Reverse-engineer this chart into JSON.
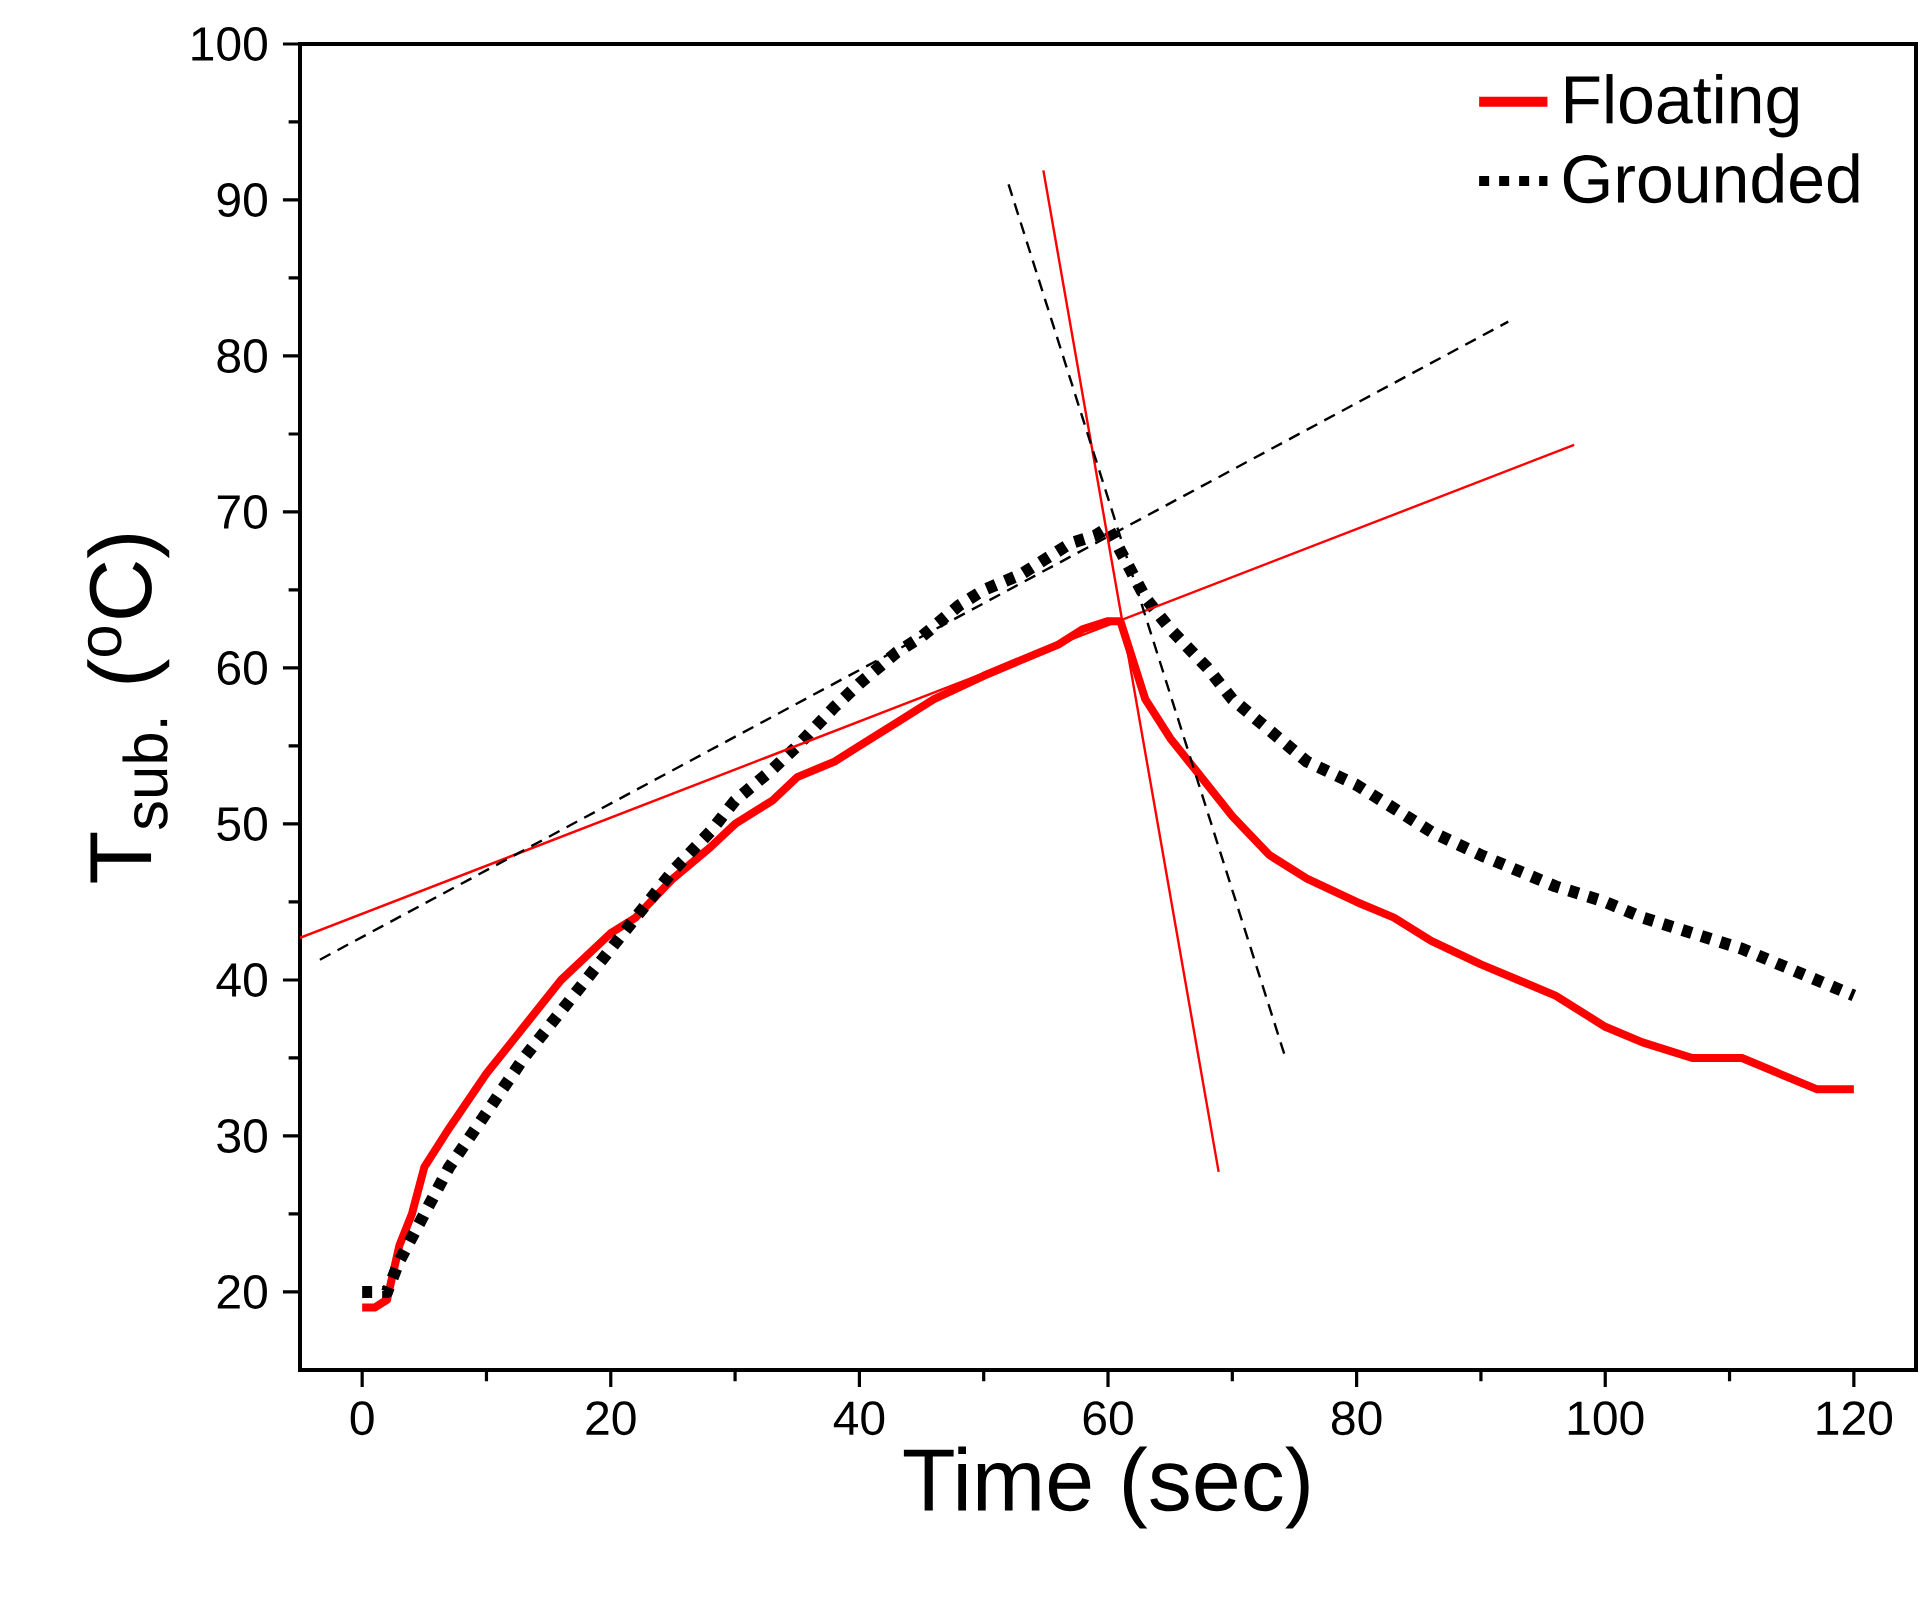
{
  "chart_data": {
    "type": "line",
    "xlabel": "Time (sec)",
    "ylabel": "T$_{sub.}$ ($^{o}$C)",
    "xlim": [
      -5,
      125
    ],
    "ylim": [
      15,
      100
    ],
    "xticks": [
      0,
      20,
      40,
      60,
      80,
      100,
      120
    ],
    "yticks": [
      20,
      30,
      40,
      50,
      60,
      70,
      80,
      90,
      100
    ],
    "grid": false,
    "legend": "top right",
    "series": [
      {
        "name": "Floating",
        "color": "#ff0000",
        "line_style": "solid",
        "x": [
          0,
          1,
          2,
          3,
          4,
          5,
          7,
          10,
          13,
          16,
          20,
          22,
          25,
          28,
          30,
          33,
          35,
          38,
          40,
          43,
          46,
          50,
          53,
          56,
          58,
          60,
          61,
          62,
          63,
          65,
          67,
          70,
          73,
          76,
          80,
          83,
          86,
          90,
          93,
          96,
          100,
          103,
          107,
          111,
          114,
          117,
          120
        ],
        "values": [
          19,
          19,
          19.5,
          23,
          25,
          28,
          30.5,
          34,
          37,
          40,
          43,
          44,
          46.5,
          48.5,
          50,
          51.5,
          53,
          54,
          55,
          56.5,
          58,
          59.5,
          60.5,
          61.5,
          62.5,
          63,
          63,
          60.5,
          58,
          55.5,
          53.5,
          50.5,
          48,
          46.5,
          45,
          44,
          42.5,
          41,
          40,
          39,
          37,
          36,
          35,
          35,
          34,
          33,
          33
        ]
      },
      {
        "name": "Grounded",
        "color": "#000000",
        "line_style": "dotted",
        "x": [
          0,
          2,
          3,
          5,
          7,
          10,
          13,
          16,
          20,
          23,
          25,
          28,
          30,
          33,
          35,
          38,
          40,
          43,
          45,
          48,
          50,
          53,
          55,
          57,
          59,
          60,
          61,
          63,
          65,
          68,
          70,
          73,
          76,
          80,
          83,
          86,
          90,
          93,
          96,
          100,
          103,
          107,
          111,
          114,
          117,
          120
        ],
        "values": [
          20,
          20,
          22,
          25,
          28,
          31.5,
          35,
          38,
          42,
          45,
          47,
          49.5,
          51.5,
          53.5,
          55,
          57.5,
          59,
          61,
          62,
          64,
          65,
          66,
          67,
          68,
          68.5,
          69,
          67.5,
          64.5,
          62.5,
          60,
          58,
          56,
          54,
          52.5,
          51,
          49.5,
          48,
          47,
          46,
          45,
          44,
          43,
          42,
          41,
          40,
          39
        ]
      },
      {
        "color": "#ff0000",
        "line_style": "solid",
        "x": [
          -5,
          97.5
        ],
        "values": [
          42.7,
          74.3
        ]
      },
      {
        "color": "#ff0000",
        "line_style": "solid",
        "x": [
          54.8,
          68.9
        ],
        "values": [
          91.9,
          27.7
        ]
      },
      {
        "color": "#000000",
        "line_style": "dashed",
        "x": [
          -3.4,
          92.2
        ],
        "values": [
          41.3,
          82.2
        ]
      },
      {
        "color": "#000000",
        "line_style": "dashed",
        "x": [
          52,
          74.2
        ],
        "values": [
          91,
          35.2
        ]
      }
    ]
  }
}
